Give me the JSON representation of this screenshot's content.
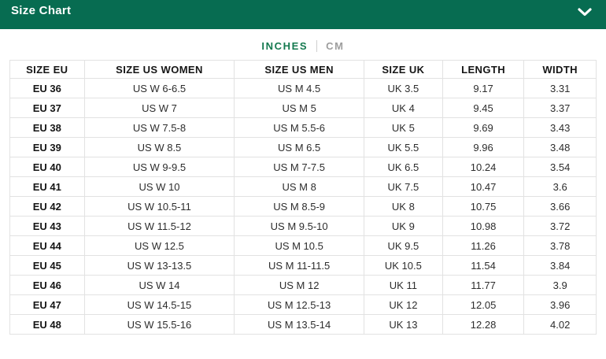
{
  "colors": {
    "header-bg": "#076C51",
    "accent-green": "#14794F",
    "inactive-gray": "#9E9E9E",
    "border": "#E2E2E2",
    "text-dark": "#151515",
    "text-body": "#2D2D2D"
  },
  "header": {
    "title": "Size Chart",
    "chevron_icon": "chevron-down"
  },
  "unit_toggle": {
    "inches_label": "INCHES",
    "cm_label": "CM",
    "active": "INCHES"
  },
  "table": {
    "columns": [
      "SIZE EU",
      "SIZE US WOMEN",
      "SIZE US MEN",
      "SIZE UK",
      "LENGTH",
      "WIDTH"
    ],
    "rows": [
      [
        "EU 36",
        "US W 6-6.5",
        "US M 4.5",
        "UK 3.5",
        "9.17",
        "3.31"
      ],
      [
        "EU 37",
        "US W 7",
        "US M 5",
        "UK 4",
        "9.45",
        "3.37"
      ],
      [
        "EU 38",
        "US W 7.5-8",
        "US M 5.5-6",
        "UK 5",
        "9.69",
        "3.43"
      ],
      [
        "EU 39",
        "US W 8.5",
        "US M 6.5",
        "UK 5.5",
        "9.96",
        "3.48"
      ],
      [
        "EU 40",
        "US W 9-9.5",
        "US M 7-7.5",
        "UK 6.5",
        "10.24",
        "3.54"
      ],
      [
        "EU 41",
        "US W 10",
        "US M 8",
        "UK 7.5",
        "10.47",
        "3.6"
      ],
      [
        "EU 42",
        "US W 10.5-11",
        "US M 8.5-9",
        "UK 8",
        "10.75",
        "3.66"
      ],
      [
        "EU 43",
        "US W 11.5-12",
        "US M 9.5-10",
        "UK 9",
        "10.98",
        "3.72"
      ],
      [
        "EU 44",
        "US W 12.5",
        "US M 10.5",
        "UK 9.5",
        "11.26",
        "3.78"
      ],
      [
        "EU 45",
        "US W 13-13.5",
        "US M 11-11.5",
        "UK 10.5",
        "11.54",
        "3.84"
      ],
      [
        "EU 46",
        "US W 14",
        "US M 12",
        "UK 11",
        "11.77",
        "3.9"
      ],
      [
        "EU 47",
        "US W 14.5-15",
        "US M 12.5-13",
        "UK 12",
        "12.05",
        "3.96"
      ],
      [
        "EU 48",
        "US W 15.5-16",
        "US M 13.5-14",
        "UK 13",
        "12.28",
        "4.02"
      ]
    ]
  }
}
